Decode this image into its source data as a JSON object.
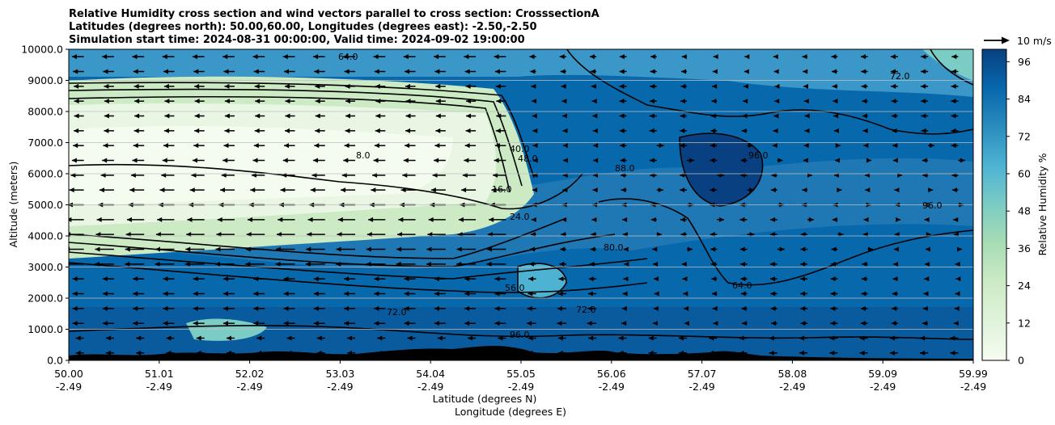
{
  "chart_data": {
    "type": "heatmap",
    "title_lines": [
      "Relative Humidity cross section and wind vectors parallel to cross section: CrosssectionA",
      "Latitudes (degrees north): 50.00,60.00, Longitudes (degrees east): -2.50,-2.50",
      "Simulation start time: 2024-08-31 00:00:00, Valid time: 2024-09-02 19:00:00"
    ],
    "xlabel_lines": [
      "Latitude (degrees N)",
      "Longitude (degrees E)"
    ],
    "ylabel": "Altitude (meters)",
    "x_ticks": [
      {
        "lat": "50.00",
        "lon": "-2.49"
      },
      {
        "lat": "51.01",
        "lon": "-2.49"
      },
      {
        "lat": "52.02",
        "lon": "-2.49"
      },
      {
        "lat": "53.03",
        "lon": "-2.49"
      },
      {
        "lat": "54.04",
        "lon": "-2.49"
      },
      {
        "lat": "55.05",
        "lon": "-2.49"
      },
      {
        "lat": "56.06",
        "lon": "-2.49"
      },
      {
        "lat": "57.07",
        "lon": "-2.49"
      },
      {
        "lat": "58.08",
        "lon": "-2.49"
      },
      {
        "lat": "59.09",
        "lon": "-2.49"
      },
      {
        "lat": "59.99",
        "lon": "-2.49"
      }
    ],
    "xlim": [
      50.0,
      59.99
    ],
    "y_ticks": [
      "0.0",
      "1000.0",
      "2000.0",
      "3000.0",
      "4000.0",
      "5000.0",
      "6000.0",
      "7000.0",
      "8000.0",
      "9000.0",
      "10000.0"
    ],
    "ylim": [
      0,
      10000
    ],
    "grid": "horizontal",
    "colorbar": {
      "label": "Relative Humidity %",
      "ticks": [
        "0",
        "12",
        "24",
        "36",
        "48",
        "60",
        "72",
        "84",
        "96"
      ],
      "range": [
        0,
        100
      ],
      "colors": [
        "#f7fcf0",
        "#e0f3db",
        "#ccebc5",
        "#a8ddb5",
        "#7bccc4",
        "#4eb3d3",
        "#2b8cbe",
        "#0868ac",
        "#084081"
      ]
    },
    "quiver_key": "10 m/s",
    "contour_labels": [
      "8.0",
      "16.0",
      "24.0",
      "40.0",
      "48.0",
      "56.0",
      "64.0",
      "72.0",
      "80.0",
      "88.0",
      "96.0"
    ],
    "rh_profile": {
      "latitudes": [
        50.0,
        51.0,
        52.0,
        53.0,
        54.0,
        55.0,
        55.5,
        56.0,
        57.0,
        58.0,
        59.0,
        59.99
      ],
      "altitudes": [
        0,
        1000,
        2000,
        3000,
        4000,
        5000,
        6000,
        7000,
        8000,
        9000,
        10000
      ]
    }
  }
}
